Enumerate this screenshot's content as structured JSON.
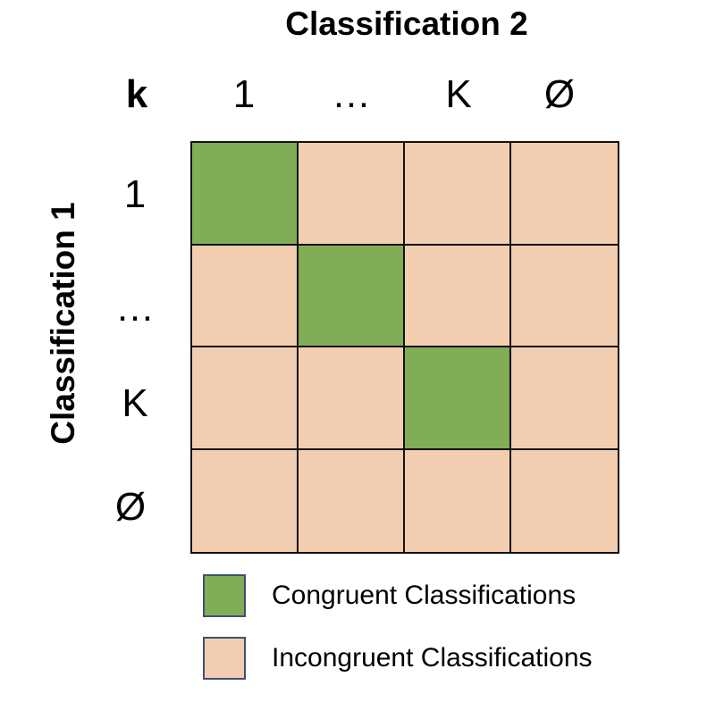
{
  "titles": {
    "top": "Classification 2",
    "left": "Classification 1",
    "corner": "k"
  },
  "columns": [
    "1",
    "…",
    "K",
    "Ø"
  ],
  "rows": [
    "1",
    "…",
    "K",
    "Ø"
  ],
  "matrix": [
    [
      "congruent",
      "incongruent",
      "incongruent",
      "incongruent"
    ],
    [
      "incongruent",
      "congruent",
      "incongruent",
      "incongruent"
    ],
    [
      "incongruent",
      "incongruent",
      "congruent",
      "incongruent"
    ],
    [
      "incongruent",
      "incongruent",
      "incongruent",
      "incongruent"
    ]
  ],
  "legend": [
    {
      "key": "congruent",
      "label": "Congruent Classifications",
      "color": "#80ad55"
    },
    {
      "key": "incongruent",
      "label": "Incongruent Classifications",
      "color": "#f2cdaf"
    }
  ],
  "colors": {
    "congruent": "#80ad55",
    "incongruent": "#f2cdaf",
    "grid_line": "#111111",
    "legend_border": "#3f4f72"
  }
}
